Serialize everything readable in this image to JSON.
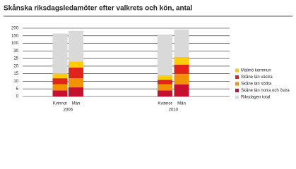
{
  "chart_data": {
    "type": "bar",
    "stacked": true,
    "broken_axis": true,
    "title": "Skånska riksdagsledamöter efter valkrets och kön, antal",
    "categories": [
      "Kvinnor",
      "Män",
      "Kvinnor",
      "Män"
    ],
    "groups": [
      "2006",
      "2010"
    ],
    "series": [
      {
        "name": "Skåne län norra och östra",
        "color": "#c8102e",
        "values": [
          4,
          6,
          4,
          8
        ]
      },
      {
        "name": "Skåne län södra",
        "color": "#f39200",
        "values": [
          4,
          6,
          4,
          7
        ]
      },
      {
        "name": "Skåne län västra",
        "color": "#e2231a",
        "values": [
          4,
          7,
          3,
          6
        ]
      },
      {
        "name": "Malmö kommun",
        "color": "#ffcc00",
        "values": [
          3,
          4,
          3,
          5
        ]
      },
      {
        "name": "Riksdagen total",
        "color": "#d9d9d9",
        "values": [
          150,
          160,
          144,
          165
        ]
      }
    ],
    "ylim": [
      0,
      200
    ],
    "yticks": [
      0,
      5,
      10,
      15,
      20,
      25,
      30,
      100,
      150,
      200
    ],
    "grid": true
  }
}
